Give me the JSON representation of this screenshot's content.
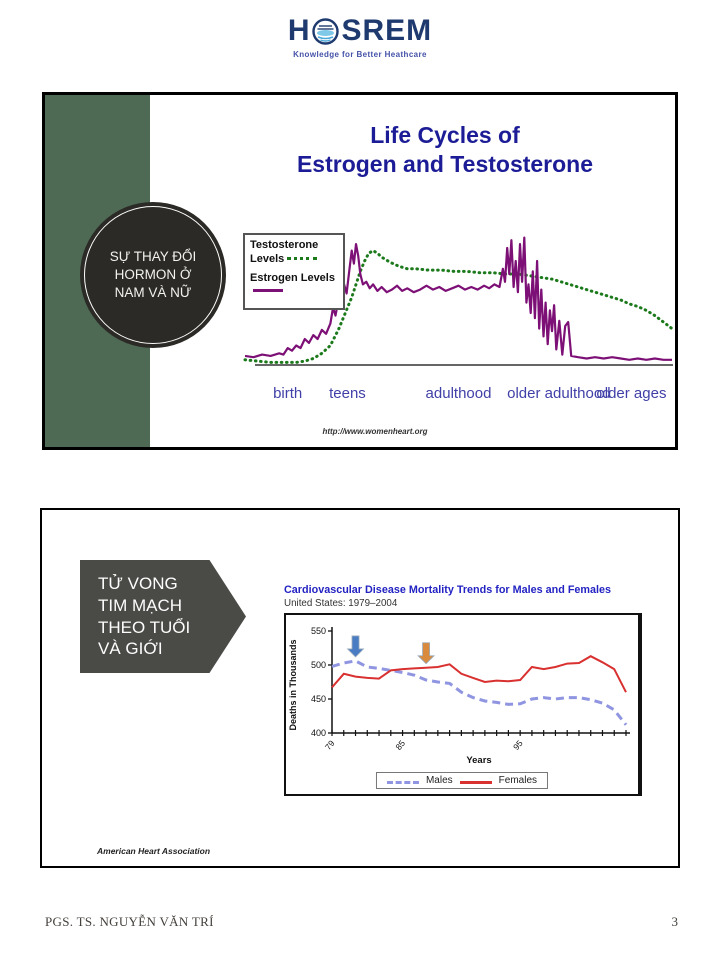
{
  "header": {
    "logo_text_left": "H",
    "logo_text_right": "SREM",
    "logo_tagline": "Knowledge for Better Heathcare"
  },
  "slide1": {
    "badge_lines": [
      "SỰ THAY ĐỔI",
      "HORMON Ở",
      "NAM VÀ NỮ"
    ],
    "title_line1": "Life Cycles of",
    "title_line2": "Estrogen and Testosterone",
    "legend": {
      "testosterone_label": "Testosterone Levels",
      "estrogen_label": "Estrogen Levels"
    },
    "source": "http://www.womenheart.org"
  },
  "slide2": {
    "badge_lines": [
      "TỬ VONG",
      "TIM MẠCH",
      "THEO TUỔI",
      "VÀ GIỚI"
    ],
    "legend": {
      "males_label": "Males",
      "females_label": "Females"
    },
    "source": "American Heart Association"
  },
  "footer": {
    "author": "PGS. TS. NGUYỄN VĂN TRÍ",
    "page_number": "3"
  },
  "chart_data": [
    {
      "type": "line",
      "title": "Life Cycles of Estrogen and Testosterone",
      "xlabel": "",
      "ylabel": "",
      "x_stage_labels": [
        "birth",
        "teens",
        "adulthood",
        "older adulthood",
        "older ages"
      ],
      "x_stage_label_positions": [
        10,
        24,
        50,
        73.5,
        90.5
      ],
      "note": "qualitative hormone levels, x = life span 0-100, y = relative level 0-100",
      "grid": false,
      "legend_position": "upper-left box",
      "series": [
        {
          "name": "Testosterone Levels",
          "style": "dotted",
          "color": "#1c7a1c",
          "points": [
            [
              0,
              4
            ],
            [
              3,
              3
            ],
            [
              6,
              2
            ],
            [
              9,
              2
            ],
            [
              12,
              2
            ],
            [
              14,
              3
            ],
            [
              16,
              5
            ],
            [
              18,
              9
            ],
            [
              20,
              15
            ],
            [
              22,
              28
            ],
            [
              23.5,
              40
            ],
            [
              25,
              52
            ],
            [
              26,
              62
            ],
            [
              27,
              72
            ],
            [
              28,
              80
            ],
            [
              29,
              86
            ],
            [
              30,
              88
            ],
            [
              31,
              86
            ],
            [
              32,
              83
            ],
            [
              34,
              79
            ],
            [
              36,
              76
            ],
            [
              38,
              74
            ],
            [
              40,
              74
            ],
            [
              43,
              73
            ],
            [
              46,
              73
            ],
            [
              49,
              72
            ],
            [
              52,
              72
            ],
            [
              55,
              71
            ],
            [
              58,
              71
            ],
            [
              61,
              70
            ],
            [
              64,
              70
            ],
            [
              66,
              69
            ],
            [
              68,
              68
            ],
            [
              70,
              67
            ],
            [
              72,
              66
            ],
            [
              74,
              64
            ],
            [
              76,
              62
            ],
            [
              78,
              60
            ],
            [
              80,
              58
            ],
            [
              82,
              56
            ],
            [
              84,
              54
            ],
            [
              86,
              52
            ],
            [
              88,
              50
            ],
            [
              90,
              47
            ],
            [
              92,
              45
            ],
            [
              94,
              42
            ],
            [
              96,
              38
            ],
            [
              98,
              33
            ],
            [
              100,
              28
            ]
          ]
        },
        {
          "name": "Estrogen Levels",
          "style": "solid",
          "color": "#7d1076",
          "points": [
            [
              0,
              7
            ],
            [
              2,
              6
            ],
            [
              4,
              8
            ],
            [
              6,
              7
            ],
            [
              8,
              9
            ],
            [
              9,
              8
            ],
            [
              10,
              13
            ],
            [
              11,
              11
            ],
            [
              12,
              15
            ],
            [
              13,
              13
            ],
            [
              14,
              20
            ],
            [
              15,
              17
            ],
            [
              16,
              23
            ],
            [
              17,
              20
            ],
            [
              18,
              27
            ],
            [
              19,
              24
            ],
            [
              20,
              32
            ],
            [
              20.6,
              44
            ],
            [
              21.2,
              38
            ],
            [
              22,
              52
            ],
            [
              22.6,
              46
            ],
            [
              23.2,
              62
            ],
            [
              23.8,
              55
            ],
            [
              24.4,
              72
            ],
            [
              25,
              88
            ],
            [
              25.5,
              78
            ],
            [
              26,
              93
            ],
            [
              26.5,
              84
            ],
            [
              27,
              70
            ],
            [
              27.6,
              62
            ],
            [
              28.4,
              64
            ],
            [
              29.2,
              59
            ],
            [
              30,
              62
            ],
            [
              31,
              57
            ],
            [
              32,
              60
            ],
            [
              33.2,
              56
            ],
            [
              34.4,
              58
            ],
            [
              35.6,
              61
            ],
            [
              36.8,
              57
            ],
            [
              38,
              59
            ],
            [
              39.5,
              56
            ],
            [
              41,
              58
            ],
            [
              42.5,
              61
            ],
            [
              44,
              58
            ],
            [
              45.5,
              60
            ],
            [
              47,
              57
            ],
            [
              48.5,
              59
            ],
            [
              50,
              61
            ],
            [
              51.5,
              58
            ],
            [
              53,
              60
            ],
            [
              54.5,
              58
            ],
            [
              56,
              61
            ],
            [
              57.2,
              59
            ],
            [
              58.4,
              62
            ],
            [
              59.6,
              60
            ],
            [
              60.4,
              74
            ],
            [
              60.9,
              64
            ],
            [
              61.4,
              90
            ],
            [
              61.9,
              70
            ],
            [
              62.4,
              96
            ],
            [
              62.9,
              60
            ],
            [
              63.4,
              80
            ],
            [
              63.9,
              56
            ],
            [
              64.4,
              93
            ],
            [
              64.9,
              64
            ],
            [
              65.4,
              98
            ],
            [
              65.9,
              48
            ],
            [
              66.4,
              62
            ],
            [
              66.9,
              40
            ],
            [
              67.4,
              72
            ],
            [
              67.9,
              36
            ],
            [
              68.4,
              80
            ],
            [
              68.9,
              28
            ],
            [
              69.4,
              58
            ],
            [
              69.9,
              22
            ],
            [
              70.4,
              48
            ],
            [
              70.9,
              16
            ],
            [
              71.4,
              42
            ],
            [
              71.9,
              26
            ],
            [
              72.4,
              46
            ],
            [
              72.9,
              12
            ],
            [
              73.6,
              34
            ],
            [
              74.3,
              8
            ],
            [
              75,
              30
            ],
            [
              75.7,
              33
            ],
            [
              76.4,
              7
            ],
            [
              78,
              6
            ],
            [
              80,
              5
            ],
            [
              82,
              6
            ],
            [
              84,
              5
            ],
            [
              86,
              6
            ],
            [
              88,
              5
            ],
            [
              90,
              4
            ],
            [
              92,
              5
            ],
            [
              94,
              4
            ],
            [
              96,
              5
            ],
            [
              98,
              4
            ],
            [
              100,
              4
            ]
          ]
        }
      ]
    },
    {
      "type": "line",
      "title": "Cardiovascular Disease Mortality Trends for Males and Females",
      "subtitle": "United States: 1979–2004",
      "xlabel": "Years",
      "ylabel": "Deaths in Thousands",
      "ylim": [
        400,
        550
      ],
      "yticks": [
        400,
        450,
        500,
        550
      ],
      "x_start_year": 1979,
      "x_end_year": 2004,
      "xtick_labels": [
        {
          "year": 1979,
          "label": "79"
        },
        {
          "year": 1985,
          "label": "85"
        },
        {
          "year": 1995,
          "label": "95"
        }
      ],
      "grid": false,
      "legend_position": "bottom box",
      "series": [
        {
          "name": "Males",
          "style": "dashed",
          "color": "#8f95e0",
          "values": [
            498,
            503,
            506,
            497,
            495,
            492,
            489,
            485,
            478,
            475,
            473,
            460,
            452,
            447,
            445,
            442,
            443,
            450,
            452,
            450,
            452,
            452,
            449,
            444,
            434,
            412
          ]
        },
        {
          "name": "Females",
          "style": "solid",
          "color": "#d93030",
          "values": [
            467,
            487,
            483,
            481,
            480,
            492,
            494,
            495,
            496,
            497,
            501,
            487,
            481,
            475,
            477,
            476,
            478,
            497,
            494,
            497,
            502,
            503,
            513,
            504,
            494,
            460
          ]
        }
      ],
      "annotations": [
        {
          "type": "down-arrow",
          "color": "#4a7cc4",
          "year": 1981
        },
        {
          "type": "down-arrow",
          "color": "#d98a3c",
          "year": 1987
        }
      ]
    }
  ]
}
